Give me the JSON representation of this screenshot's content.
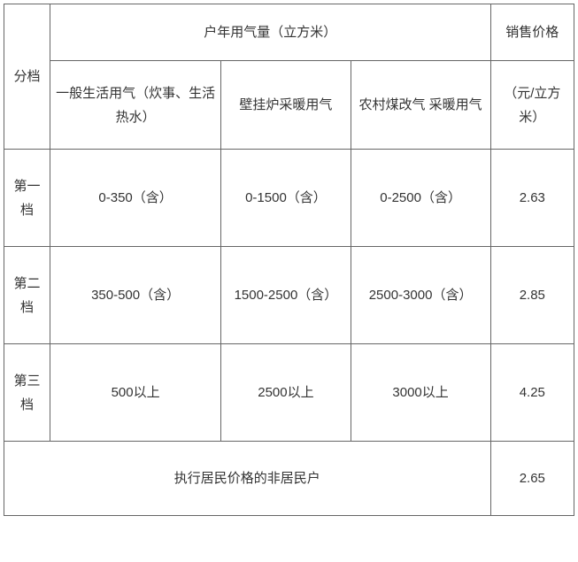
{
  "table": {
    "border_color": "#666666",
    "background_color": "#ffffff",
    "text_color": "#333333",
    "font_size": 15,
    "header": {
      "tier_label": "分档",
      "usage_group_label": "户年用气量（立方米）",
      "price_label": "销售价格",
      "col_general": "一般生活用气（炊事、生活热水）",
      "col_wall": "壁挂炉采暖用气",
      "col_rural": "农村煤改气 采暖用气",
      "price_unit": "（元/立方米）"
    },
    "tiers": [
      {
        "label": "第一档",
        "general": "0-350（含）",
        "wall": "0-1500（含）",
        "rural": "0-2500（含）",
        "price": "2.63"
      },
      {
        "label": "第二档",
        "general": "350-500（含）",
        "wall": "1500-2500（含）",
        "rural": "2500-3000（含）",
        "price": "2.85"
      },
      {
        "label": "第三档",
        "general": "500以上",
        "wall": "2500以上",
        "rural": "3000以上",
        "price": "4.25"
      }
    ],
    "footer": {
      "label": "执行居民价格的非居民户",
      "price": "2.65"
    }
  }
}
